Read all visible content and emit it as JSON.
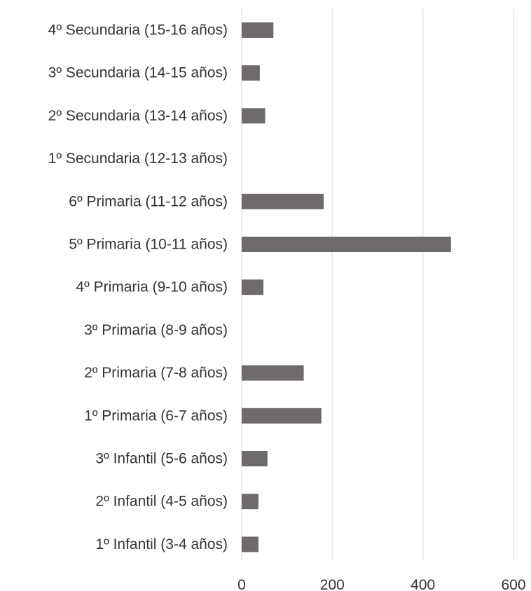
{
  "chart_data": {
    "type": "bar",
    "orientation": "horizontal",
    "title": "",
    "xlabel": "",
    "ylabel": "",
    "categories": [
      "4º Secundaria (15-16 años)",
      "3º Secundaria (14-15 años)",
      "2º Secundaria (13-14 años)",
      "1º Secundaria (12-13 años)",
      "6º Primaria (11-12 años)",
      "5º Primaria (10-11 años)",
      "4º Primaria (9-10 años)",
      "3º Primaria (8-9 años)",
      "2º Primaria (7-8 años)",
      "1º Primaria (6-7 años)",
      "3º Infantil (5-6 años)",
      "2º Infantil (4-5 años)",
      "1º Infantil (3-4 años)"
    ],
    "values": [
      70,
      40,
      52,
      0,
      181,
      462,
      48,
      0,
      137,
      176,
      57,
      37,
      37
    ],
    "xlim": [
      0,
      600
    ],
    "xticks": [
      0,
      200,
      400,
      600
    ],
    "xtick_labels": [
      "0",
      "200",
      "400",
      "600"
    ],
    "grid": true,
    "legend": "none",
    "colors": {
      "bar": "#6f6b6a",
      "grid": "#e6e6e6",
      "text": "#333333"
    }
  }
}
